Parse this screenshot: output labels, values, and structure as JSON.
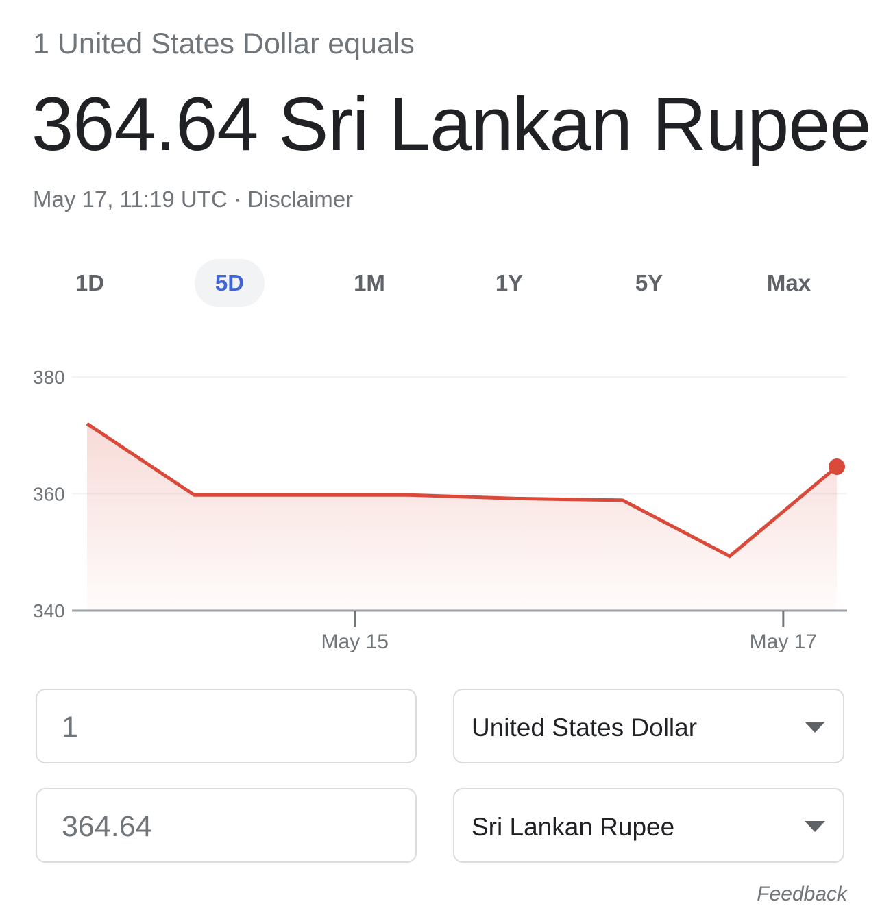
{
  "header": {
    "subtitle": "1 United States Dollar equals",
    "title": "364.64 Sri Lankan Rupee",
    "timestamp": "May 17, 11:19 UTC",
    "separator": "·",
    "disclaimer": "Disclaimer"
  },
  "tabs": {
    "items": [
      "1D",
      "5D",
      "1M",
      "1Y",
      "5Y",
      "Max"
    ],
    "selected": 1
  },
  "chart_data": {
    "type": "line",
    "categories": [
      null,
      null,
      null,
      null,
      null,
      null,
      null,
      null
    ],
    "values": [
      372.0,
      359.8,
      359.8,
      359.8,
      359.2,
      358.9,
      349.3,
      364.64
    ],
    "color": "#d94a3a",
    "xlim": [
      0,
      7
    ],
    "xticks": [
      {
        "value": 2.5,
        "label": "May 15"
      },
      {
        "value": 6.5,
        "label": "May 17"
      }
    ],
    "ylim": [
      340,
      380
    ],
    "yticks": [
      340,
      360,
      380
    ],
    "grid": true,
    "area": true,
    "last_point_marker": true
  },
  "converter": {
    "amount_from": "1",
    "currency_from": "United States Dollar",
    "amount_to": "364.64",
    "currency_to": "Sri Lankan Rupee"
  },
  "footer": {
    "feedback": "Feedback"
  }
}
